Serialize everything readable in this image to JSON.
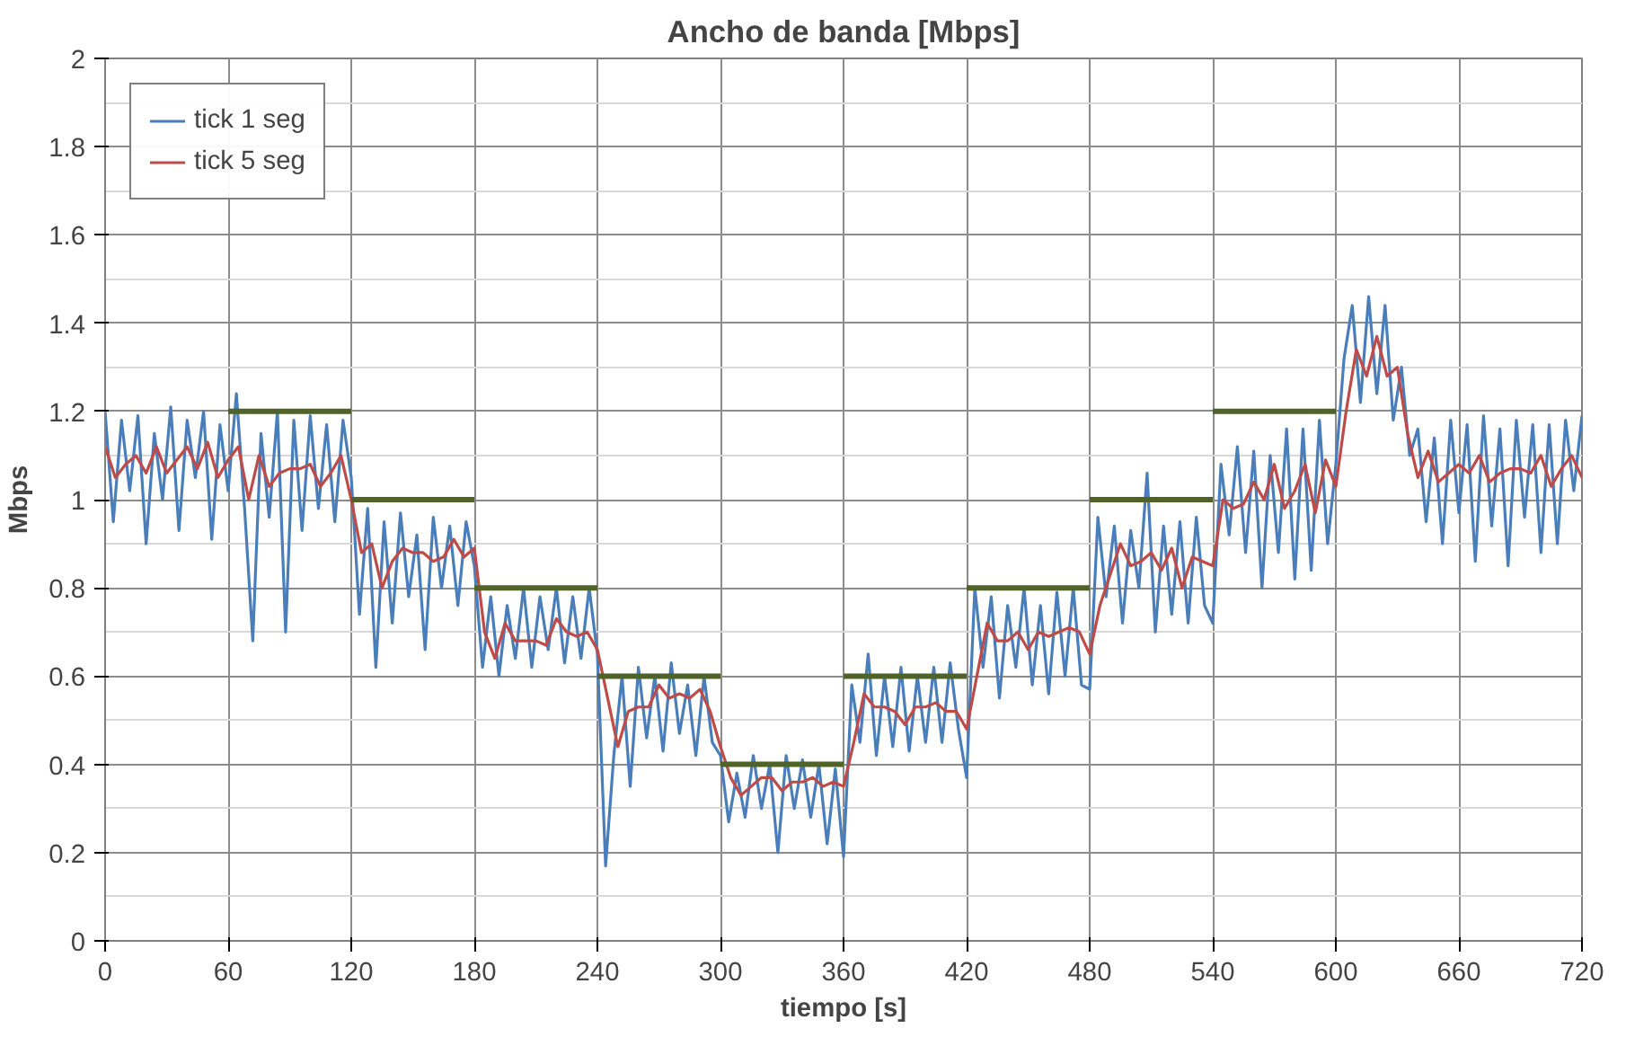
{
  "chart_data": {
    "type": "line",
    "title": "Ancho de banda [Mbps]",
    "xlabel": "tiempo [s]",
    "ylabel": "Mbps",
    "xlim": [
      0,
      720
    ],
    "xticks": [
      0,
      60,
      120,
      180,
      240,
      300,
      360,
      420,
      480,
      540,
      600,
      660,
      720
    ],
    "ylim": [
      0,
      2
    ],
    "yticks": [
      0,
      0.2,
      0.4,
      0.6,
      0.8,
      1,
      1.2,
      1.4,
      1.6,
      1.8,
      2
    ],
    "grid": true,
    "legend": "top left",
    "marker": "none",
    "line_style": "solid",
    "series": [
      {
        "name": "tick 1 seg",
        "color": "#4a7ebb",
        "x": [
          0,
          4,
          8,
          12,
          16,
          20,
          24,
          28,
          32,
          36,
          40,
          44,
          48,
          52,
          56,
          60,
          64,
          68,
          72,
          76,
          80,
          84,
          88,
          92,
          96,
          100,
          104,
          108,
          112,
          116,
          120,
          124,
          128,
          132,
          136,
          140,
          144,
          148,
          152,
          156,
          160,
          164,
          168,
          172,
          176,
          180,
          184,
          188,
          192,
          196,
          200,
          204,
          208,
          212,
          216,
          220,
          224,
          228,
          232,
          236,
          240,
          244,
          248,
          252,
          256,
          260,
          264,
          268,
          272,
          276,
          280,
          284,
          288,
          292,
          296,
          300,
          304,
          308,
          312,
          316,
          320,
          324,
          328,
          332,
          336,
          340,
          344,
          348,
          352,
          356,
          360,
          364,
          368,
          372,
          376,
          380,
          384,
          388,
          392,
          396,
          400,
          404,
          408,
          412,
          416,
          420,
          424,
          428,
          432,
          436,
          440,
          444,
          448,
          452,
          456,
          460,
          464,
          468,
          472,
          476,
          480,
          484,
          488,
          492,
          496,
          500,
          504,
          508,
          512,
          516,
          520,
          524,
          528,
          532,
          536,
          540,
          544,
          548,
          552,
          556,
          560,
          564,
          568,
          572,
          576,
          580,
          584,
          588,
          592,
          596,
          600,
          604,
          608,
          612,
          616,
          620,
          624,
          628,
          632,
          636,
          640,
          644,
          648,
          652,
          656,
          660,
          664,
          668,
          672,
          676,
          680,
          684,
          688,
          692,
          696,
          700,
          704,
          708,
          712,
          716,
          720
        ],
        "values": [
          1.2,
          0.95,
          1.18,
          1.02,
          1.19,
          0.9,
          1.15,
          1.0,
          1.21,
          0.93,
          1.18,
          1.05,
          1.2,
          0.91,
          1.17,
          1.02,
          1.24,
          0.98,
          0.68,
          1.15,
          0.96,
          1.2,
          0.7,
          1.18,
          0.93,
          1.19,
          0.98,
          1.17,
          0.95,
          1.18,
          1.05,
          0.74,
          0.98,
          0.62,
          0.95,
          0.72,
          0.97,
          0.78,
          0.92,
          0.66,
          0.96,
          0.8,
          0.94,
          0.76,
          0.95,
          0.85,
          0.62,
          0.78,
          0.6,
          0.76,
          0.64,
          0.8,
          0.62,
          0.78,
          0.66,
          0.8,
          0.63,
          0.78,
          0.64,
          0.8,
          0.65,
          0.17,
          0.42,
          0.6,
          0.35,
          0.62,
          0.46,
          0.6,
          0.43,
          0.63,
          0.47,
          0.58,
          0.42,
          0.6,
          0.45,
          0.42,
          0.27,
          0.38,
          0.28,
          0.42,
          0.3,
          0.4,
          0.2,
          0.42,
          0.3,
          0.41,
          0.28,
          0.4,
          0.22,
          0.39,
          0.19,
          0.58,
          0.45,
          0.65,
          0.42,
          0.6,
          0.44,
          0.62,
          0.43,
          0.6,
          0.45,
          0.62,
          0.45,
          0.63,
          0.48,
          0.37,
          0.8,
          0.62,
          0.78,
          0.55,
          0.76,
          0.62,
          0.8,
          0.58,
          0.76,
          0.56,
          0.79,
          0.6,
          0.8,
          0.58,
          0.57,
          0.96,
          0.78,
          0.94,
          0.72,
          0.93,
          0.8,
          1.06,
          0.7,
          0.94,
          0.74,
          0.95,
          0.72,
          0.96,
          0.76,
          0.72,
          1.08,
          0.92,
          1.12,
          0.88,
          1.11,
          0.8,
          1.1,
          0.88,
          1.16,
          0.82,
          1.16,
          0.84,
          1.18,
          0.9,
          1.08,
          1.32,
          1.44,
          1.22,
          1.46,
          1.24,
          1.44,
          1.18,
          1.3,
          1.1,
          1.16,
          0.95,
          1.14,
          0.9,
          1.18,
          0.97,
          1.17,
          0.86,
          1.19,
          0.94,
          1.16,
          0.85,
          1.18,
          0.96,
          1.17,
          0.88,
          1.17,
          0.9,
          1.18,
          1.02,
          1.19
        ]
      },
      {
        "name": "tick 5 seg",
        "color": "#be4b48",
        "x": [
          0,
          5,
          10,
          15,
          20,
          25,
          30,
          35,
          40,
          45,
          50,
          55,
          60,
          65,
          70,
          75,
          80,
          85,
          90,
          95,
          100,
          105,
          110,
          115,
          120,
          125,
          130,
          135,
          140,
          145,
          150,
          155,
          160,
          165,
          170,
          175,
          180,
          185,
          190,
          195,
          200,
          205,
          210,
          215,
          220,
          225,
          230,
          235,
          240,
          245,
          250,
          255,
          260,
          265,
          270,
          275,
          280,
          285,
          290,
          295,
          300,
          305,
          310,
          315,
          320,
          325,
          330,
          335,
          340,
          345,
          350,
          355,
          360,
          365,
          370,
          375,
          380,
          385,
          390,
          395,
          400,
          405,
          410,
          415,
          420,
          425,
          430,
          435,
          440,
          445,
          450,
          455,
          460,
          465,
          470,
          475,
          480,
          485,
          490,
          495,
          500,
          505,
          510,
          515,
          520,
          525,
          530,
          535,
          540,
          545,
          550,
          555,
          560,
          565,
          570,
          575,
          580,
          585,
          590,
          595,
          600,
          605,
          610,
          615,
          620,
          625,
          630,
          635,
          640,
          645,
          650,
          655,
          660,
          665,
          670,
          675,
          680,
          685,
          690,
          695,
          700,
          705,
          710,
          715,
          720
        ],
        "values": [
          1.12,
          1.05,
          1.08,
          1.1,
          1.06,
          1.12,
          1.06,
          1.09,
          1.12,
          1.07,
          1.13,
          1.05,
          1.09,
          1.12,
          1.0,
          1.1,
          1.03,
          1.06,
          1.07,
          1.07,
          1.08,
          1.03,
          1.06,
          1.1,
          1.0,
          0.88,
          0.9,
          0.8,
          0.86,
          0.89,
          0.88,
          0.88,
          0.86,
          0.87,
          0.91,
          0.87,
          0.89,
          0.7,
          0.64,
          0.72,
          0.68,
          0.68,
          0.68,
          0.67,
          0.73,
          0.7,
          0.69,
          0.7,
          0.66,
          0.55,
          0.44,
          0.52,
          0.53,
          0.53,
          0.58,
          0.55,
          0.56,
          0.55,
          0.57,
          0.52,
          0.44,
          0.37,
          0.33,
          0.35,
          0.37,
          0.37,
          0.34,
          0.36,
          0.36,
          0.37,
          0.35,
          0.36,
          0.35,
          0.45,
          0.56,
          0.53,
          0.53,
          0.52,
          0.49,
          0.53,
          0.53,
          0.54,
          0.52,
          0.52,
          0.48,
          0.6,
          0.72,
          0.68,
          0.68,
          0.7,
          0.66,
          0.7,
          0.69,
          0.7,
          0.71,
          0.7,
          0.65,
          0.76,
          0.83,
          0.9,
          0.85,
          0.86,
          0.88,
          0.84,
          0.89,
          0.8,
          0.87,
          0.86,
          0.85,
          1.0,
          0.98,
          0.99,
          1.04,
          1.0,
          1.08,
          0.98,
          1.02,
          1.08,
          0.97,
          1.09,
          1.03,
          1.2,
          1.34,
          1.28,
          1.37,
          1.28,
          1.3,
          1.15,
          1.05,
          1.11,
          1.04,
          1.06,
          1.08,
          1.06,
          1.1,
          1.04,
          1.06,
          1.07,
          1.07,
          1.06,
          1.1,
          1.03,
          1.07,
          1.1,
          1.05
        ]
      },
      {
        "color": "#4f6228",
        "x": [
          60,
          120
        ],
        "values": [
          1.2,
          1.2
        ]
      },
      {
        "color": "#4f6228",
        "x": [
          120,
          180
        ],
        "values": [
          1.0,
          1.0
        ]
      },
      {
        "color": "#4f6228",
        "x": [
          180,
          240
        ],
        "values": [
          0.8,
          0.8
        ]
      },
      {
        "color": "#4f6228",
        "x": [
          240,
          300
        ],
        "values": [
          0.6,
          0.6
        ]
      },
      {
        "color": "#4f6228",
        "x": [
          300,
          360
        ],
        "values": [
          0.4,
          0.4
        ]
      },
      {
        "color": "#4f6228",
        "x": [
          360,
          420
        ],
        "values": [
          0.6,
          0.6
        ]
      },
      {
        "color": "#4f6228",
        "x": [
          420,
          480
        ],
        "values": [
          0.8,
          0.8
        ]
      },
      {
        "color": "#4f6228",
        "x": [
          480,
          540
        ],
        "values": [
          1.0,
          1.0
        ]
      },
      {
        "color": "#4f6228",
        "x": [
          540,
          600
        ],
        "values": [
          1.2,
          1.2
        ]
      }
    ]
  }
}
